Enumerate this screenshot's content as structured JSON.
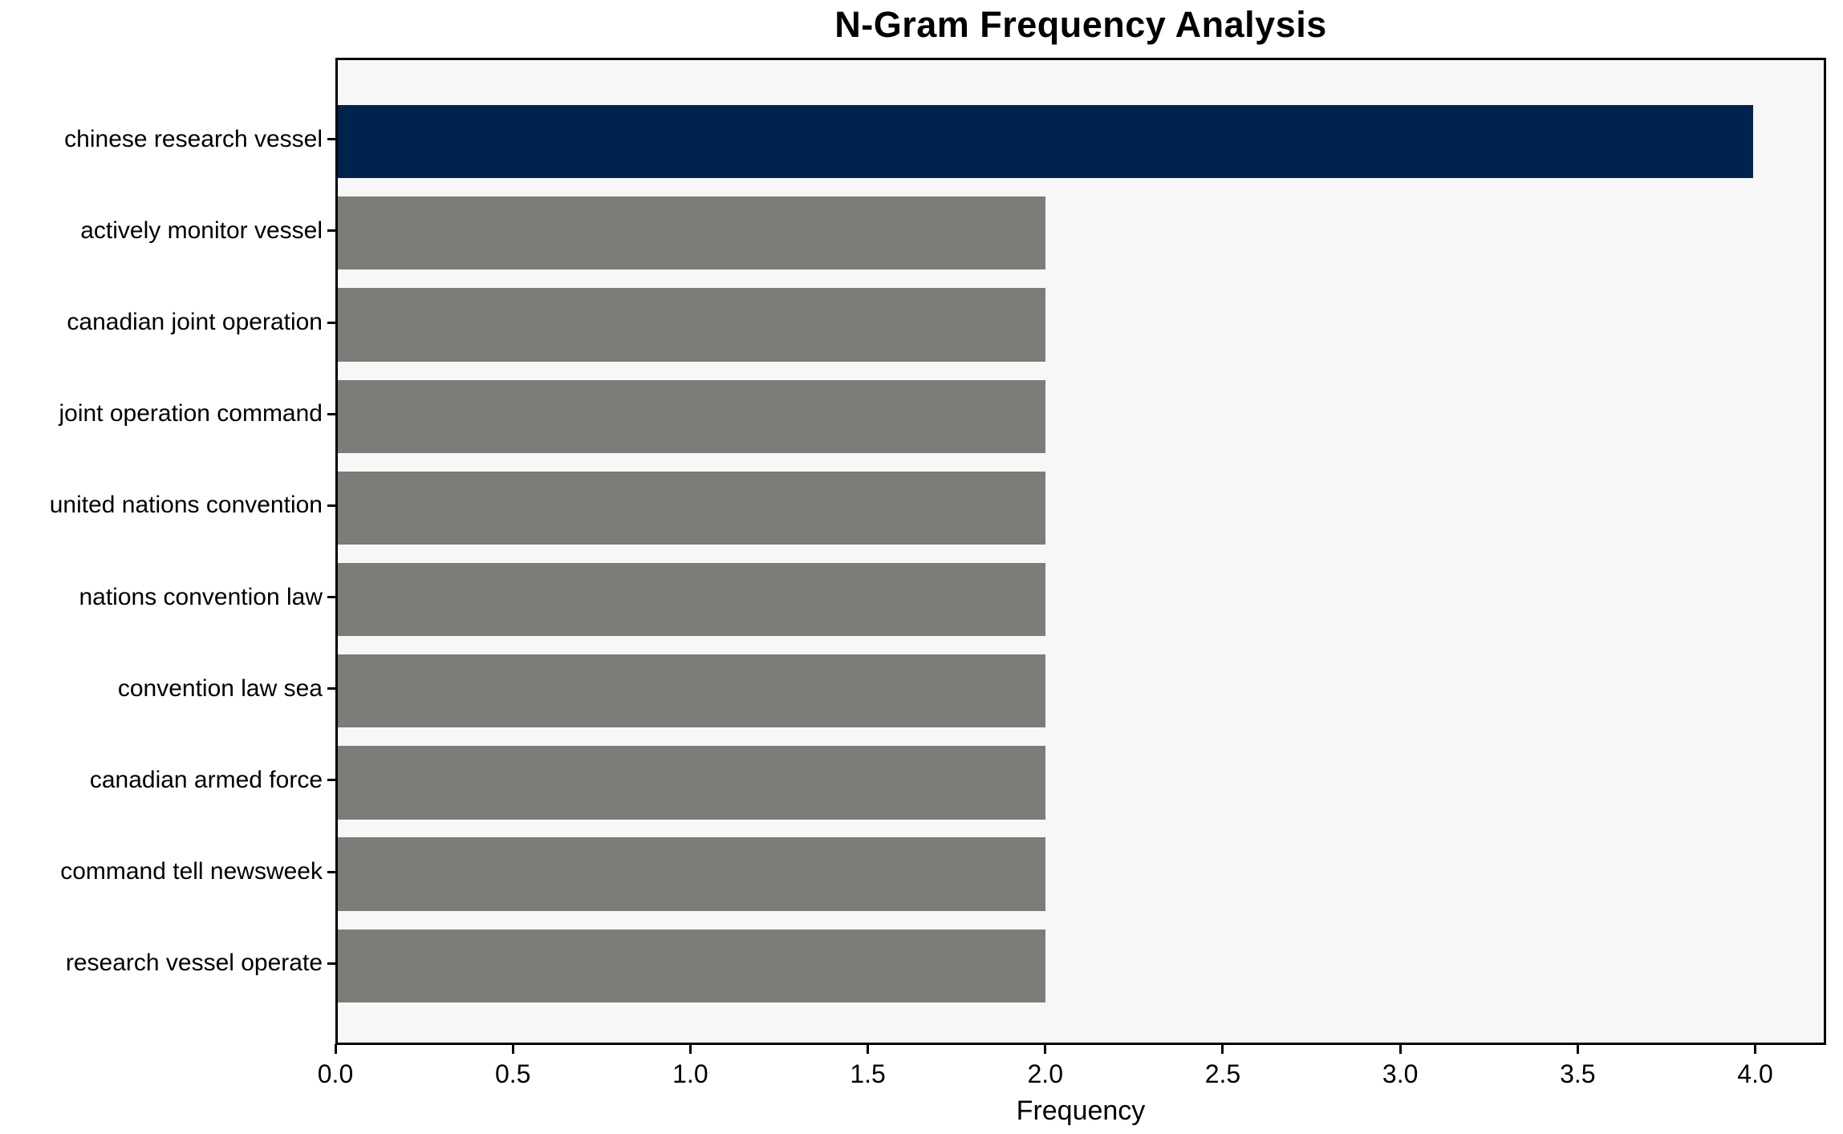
{
  "chart_data": {
    "type": "bar",
    "orientation": "horizontal",
    "title": "N-Gram Frequency Analysis",
    "xlabel": "Frequency",
    "ylabel": "",
    "categories": [
      "chinese research vessel",
      "actively monitor vessel",
      "canadian joint operation",
      "joint operation command",
      "united nations convention",
      "nations convention law",
      "convention law sea",
      "canadian armed force",
      "command tell newsweek",
      "research vessel operate"
    ],
    "values": [
      4,
      2,
      2,
      2,
      2,
      2,
      2,
      2,
      2,
      2
    ],
    "bar_colors": [
      "#00234e",
      "#7d7c78",
      "#7d7c78",
      "#7d7c78",
      "#7d7c78",
      "#7d7c78",
      "#7d7c78",
      "#7d7c78",
      "#7d7c78",
      "#7d7c78"
    ],
    "xlim": [
      0,
      4.2
    ],
    "x_ticks": [
      0.0,
      0.5,
      1.0,
      1.5,
      2.0,
      2.5,
      3.0,
      3.5,
      4.0
    ],
    "x_tick_labels": [
      "0.0",
      "0.5",
      "1.0",
      "1.5",
      "2.0",
      "2.5",
      "3.0",
      "3.5",
      "4.0"
    ],
    "bar_slot_fraction": 0.8,
    "grid": false,
    "legend": null,
    "plot_bg": "#f7f7f7",
    "fig_bg": "#ffffff",
    "axis_color": "#000000",
    "text_color": "#000000"
  }
}
